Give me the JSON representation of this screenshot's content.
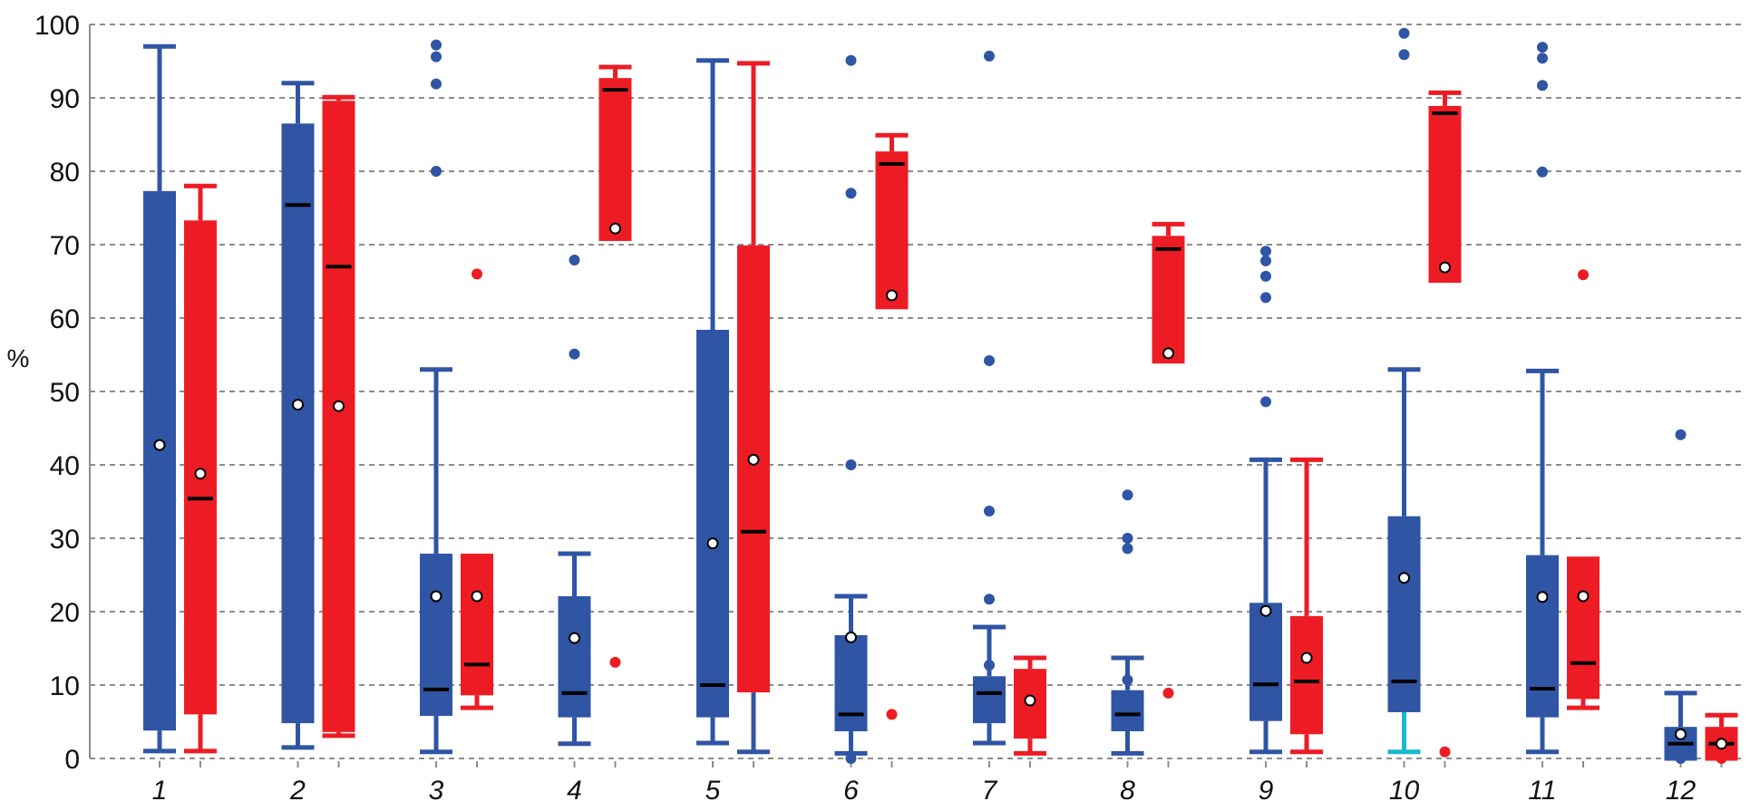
{
  "chart_data": {
    "type": "boxplot",
    "title": "",
    "xlabel": "",
    "ylabel": "%",
    "ylim": [
      0,
      100
    ],
    "yticks": [
      0,
      10,
      20,
      30,
      40,
      50,
      60,
      70,
      80,
      90,
      100
    ],
    "grid": true,
    "legend": "none",
    "categories": [
      "1",
      "2",
      "3",
      "4",
      "5",
      "6",
      "7",
      "8",
      "9",
      "10",
      "11",
      "12"
    ],
    "colors": {
      "blue": "#2f55a4",
      "red": "#ed1c24",
      "cyan": "#17b9cc",
      "median": "#000000",
      "mean_fill": "#ffffff"
    },
    "series": [
      {
        "name": "blue",
        "color": "#2f55a4",
        "boxes": [
          {
            "whisker_low": 1.0,
            "q1": 3.8,
            "median": null,
            "q3": 77.3,
            "whisker_high": 97.0,
            "mean": 42.7,
            "outliers": []
          },
          {
            "whisker_low": 1.5,
            "q1": 4.8,
            "median": 75.4,
            "q3": 86.5,
            "whisker_high": 92.0,
            "mean": 48.2,
            "outliers": []
          },
          {
            "whisker_low": 0.9,
            "q1": 5.8,
            "median": 9.4,
            "q3": 27.9,
            "whisker_high": 53.0,
            "mean": 22.1,
            "outliers": [
              80.0,
              91.9,
              95.6,
              97.2
            ]
          },
          {
            "whisker_low": 2.0,
            "q1": 5.6,
            "median": 8.9,
            "q3": 22.1,
            "whisker_high": 27.9,
            "mean": 16.4,
            "outliers": [
              55.1,
              67.9
            ]
          },
          {
            "whisker_low": 2.1,
            "q1": 5.6,
            "median": 10.0,
            "q3": 58.4,
            "whisker_high": 95.1,
            "mean": 29.3,
            "outliers": []
          },
          {
            "whisker_low": 0.7,
            "q1": 3.7,
            "median": 6.0,
            "q3": 16.8,
            "whisker_high": 22.1,
            "mean": 16.5,
            "outliers": [
              0.0,
              40.0,
              77.0,
              95.1
            ]
          },
          {
            "whisker_low": 2.1,
            "q1": 4.8,
            "median": 8.9,
            "q3": 11.2,
            "whisker_high": 17.9,
            "mean": null,
            "outliers": [
              12.7,
              21.7,
              33.7,
              54.2,
              95.7
            ]
          },
          {
            "whisker_low": 0.7,
            "q1": 3.7,
            "median": 6.0,
            "q3": 9.3,
            "whisker_high": 13.7,
            "mean": null,
            "outliers": [
              10.7,
              28.6,
              30.0,
              35.9
            ]
          },
          {
            "whisker_low": 0.9,
            "q1": 5.1,
            "median": 10.1,
            "q3": 21.2,
            "whisker_high": 40.7,
            "mean": 20.1,
            "outliers": [
              48.6,
              62.8,
              65.7,
              67.8,
              69.1
            ]
          },
          {
            "whisker_low": 0.9,
            "q1": 6.3,
            "median": 10.5,
            "q3": 33.0,
            "whisker_high": 53.0,
            "mean": 24.6,
            "outliers": [
              95.9,
              98.8
            ],
            "lower_whisker_color": "#17b9cc"
          },
          {
            "whisker_low": 0.9,
            "q1": 5.6,
            "median": 9.5,
            "q3": 27.7,
            "whisker_high": 52.8,
            "mean": 22.0,
            "outliers": [
              79.9,
              91.7,
              95.4,
              96.9
            ]
          },
          {
            "whisker_low": 0.0,
            "q1": 0.0,
            "median": 2.0,
            "q3": 4.3,
            "whisker_high": 8.9,
            "mean": 3.3,
            "outliers": [
              0.0,
              44.1
            ]
          }
        ]
      },
      {
        "name": "red",
        "color": "#ed1c24",
        "boxes": [
          {
            "whisker_low": 1.0,
            "q1": 6.0,
            "median": 35.4,
            "q3": 73.3,
            "whisker_high": 78.0,
            "mean": 38.8,
            "outliers": []
          },
          {
            "whisker_low": 3.1,
            "q1": 3.6,
            "median": 67.0,
            "q3": 89.6,
            "whisker_high": 90.1,
            "mean": 48.0,
            "outliers": []
          },
          {
            "whisker_low": 6.9,
            "q1": 8.6,
            "median": 12.8,
            "q3": 27.9,
            "whisker_high": null,
            "mean": 22.1,
            "outliers": [
              66.0
            ]
          },
          {
            "whisker_low": null,
            "q1": 70.5,
            "median": 91.1,
            "q3": 92.7,
            "whisker_high": 94.2,
            "mean": 72.2,
            "outliers": [
              13.1
            ]
          },
          {
            "whisker_low": 0.9,
            "q1": 9.0,
            "median": 30.9,
            "q3": 69.9,
            "whisker_high": 94.7,
            "mean": 40.7,
            "outliers": [],
            "lower_whisker_color": "#2f55a4"
          },
          {
            "whisker_low": null,
            "q1": 61.2,
            "median": 81.0,
            "q3": 82.7,
            "whisker_high": 84.9,
            "mean": 63.1,
            "outliers": [
              6.0
            ]
          },
          {
            "whisker_low": 0.7,
            "q1": 2.7,
            "median": null,
            "q3": 12.2,
            "whisker_high": 13.7,
            "mean": 7.9,
            "outliers": []
          },
          {
            "whisker_low": null,
            "q1": 53.8,
            "median": 69.4,
            "q3": 71.2,
            "whisker_high": 72.8,
            "mean": 55.2,
            "outliers": [
              8.9
            ]
          },
          {
            "whisker_low": 0.9,
            "q1": 3.3,
            "median": 10.5,
            "q3": 19.4,
            "whisker_high": 40.7,
            "mean": 13.7,
            "outliers": []
          },
          {
            "whisker_low": null,
            "q1": 64.8,
            "median": 87.9,
            "q3": 88.9,
            "whisker_high": 90.7,
            "mean": 66.9,
            "outliers": [
              0.9
            ]
          },
          {
            "whisker_low": 6.9,
            "q1": 8.1,
            "median": 13.0,
            "q3": 27.5,
            "whisker_high": null,
            "mean": 22.1,
            "outliers": [
              65.9
            ]
          },
          {
            "whisker_low": 0.0,
            "q1": 0.0,
            "median": 2.0,
            "q3": 4.3,
            "whisker_high": 5.9,
            "mean": 2.0,
            "outliers": [
              0.0
            ]
          }
        ]
      }
    ]
  }
}
